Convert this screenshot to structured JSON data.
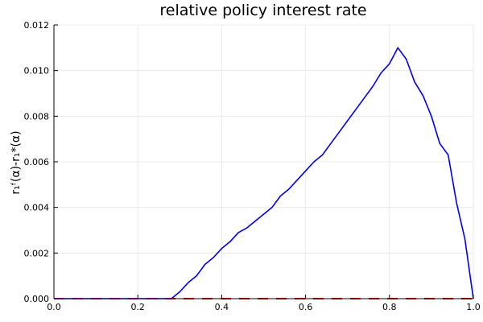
{
  "chart_data": {
    "type": "line",
    "title": "relative policy interest rate",
    "xlabel": "",
    "ylabel": "r₁ᶠ(α)-r₁*(α)",
    "xlim": [
      0,
      1
    ],
    "ylim": [
      0,
      0.012
    ],
    "xticks": [
      "0.0",
      "0.2",
      "0.4",
      "0.6",
      "0.8",
      "1.0"
    ],
    "yticks": [
      "0.000",
      "0.002",
      "0.004",
      "0.006",
      "0.008",
      "0.010",
      "0.012"
    ],
    "grid": true,
    "legend": "none",
    "series": [
      {
        "color": "#0000ee",
        "style": "solid",
        "x": [
          0.0,
          0.28,
          0.3,
          0.32,
          0.34,
          0.36,
          0.38,
          0.4,
          0.42,
          0.44,
          0.46,
          0.48,
          0.5,
          0.52,
          0.54,
          0.56,
          0.58,
          0.6,
          0.62,
          0.64,
          0.66,
          0.68,
          0.7,
          0.72,
          0.74,
          0.76,
          0.78,
          0.8,
          0.82,
          0.84,
          0.86,
          0.88,
          0.9,
          0.92,
          0.94,
          0.96,
          0.98,
          1.0
        ],
        "y": [
          0.0,
          0.0,
          0.0003,
          0.0007,
          0.001,
          0.0015,
          0.0018,
          0.0022,
          0.0025,
          0.0029,
          0.0031,
          0.0034,
          0.0037,
          0.004,
          0.0045,
          0.0048,
          0.0052,
          0.0056,
          0.006,
          0.0063,
          0.0068,
          0.0073,
          0.0078,
          0.0083,
          0.0088,
          0.0093,
          0.0099,
          0.0103,
          0.011,
          0.0105,
          0.0095,
          0.0089,
          0.008,
          0.0068,
          0.0063,
          0.0042,
          0.0026,
          0.0
        ]
      },
      {
        "color": "#ff0000",
        "style": "dashed",
        "x": [
          0.0,
          1.0
        ],
        "y": [
          0.0,
          0.0
        ]
      },
      {
        "color": "#cc00cc",
        "style": "dashed",
        "x": [
          0.0,
          0.28
        ],
        "y": [
          0.0,
          0.0
        ]
      }
    ]
  }
}
